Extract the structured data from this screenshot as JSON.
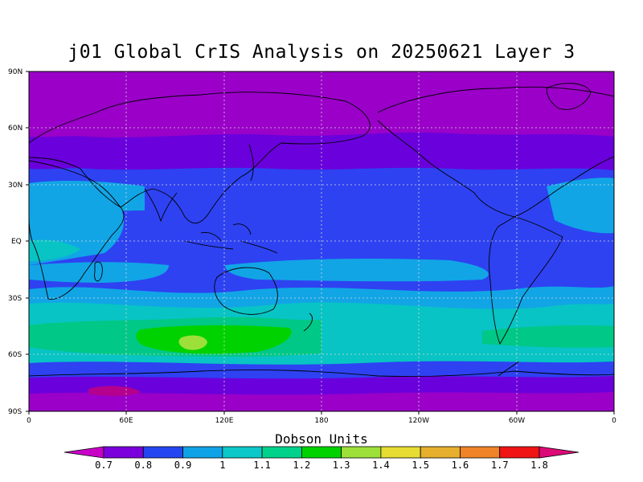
{
  "title": "j01 Global CrIS Analysis on 20250621 Layer 3",
  "map": {
    "lat_labels": [
      "90N",
      "60N",
      "30N",
      "EQ",
      "30S",
      "60S",
      "90S"
    ],
    "lon_labels": [
      "0",
      "60E",
      "120E",
      "180",
      "120W",
      "60W",
      "0"
    ],
    "field": [
      {
        "band": "polar-north",
        "value": 0.7,
        "color": "#9a00c8"
      },
      {
        "band": "north-mid",
        "value": 0.8,
        "color": "#6a00dc"
      },
      {
        "band": "north-sub",
        "value": 0.9,
        "color": "#2e42f2"
      },
      {
        "band": "tropics",
        "value": 0.9,
        "color": "#2e42f2"
      },
      {
        "band": "south-sub",
        "value": 1.0,
        "color": "#11a5e6"
      },
      {
        "band": "south-mid",
        "value": 1.1,
        "color": "#08c4c4"
      },
      {
        "band": "south-high",
        "value": 1.2,
        "color": "#00c886"
      },
      {
        "band": "max-core",
        "value": 1.3,
        "color": "#00d200"
      },
      {
        "band": "max-peak",
        "value": 1.4,
        "color": "#9ee03a"
      },
      {
        "band": "antarctic-edge",
        "value": 0.9,
        "color": "#2e42f2"
      },
      {
        "band": "antarctic",
        "value": 0.8,
        "color": "#6a00dc"
      },
      {
        "band": "antarctic-low",
        "value": 0.7,
        "color": "#9a00c8"
      }
    ]
  },
  "colorbar": {
    "title": "Dobson Units",
    "ticks": [
      "0.7",
      "0.8",
      "0.9",
      "1",
      "1.1",
      "1.2",
      "1.3",
      "1.4",
      "1.5",
      "1.6",
      "1.7",
      "1.8"
    ],
    "colors": [
      "#c800c8",
      "#7a00dc",
      "#2446f0",
      "#10a2e6",
      "#0cc8c8",
      "#00d28c",
      "#00d200",
      "#9ee03a",
      "#e6dc32",
      "#e6af2d",
      "#f08228",
      "#f01414",
      "#dc0a78"
    ]
  }
}
